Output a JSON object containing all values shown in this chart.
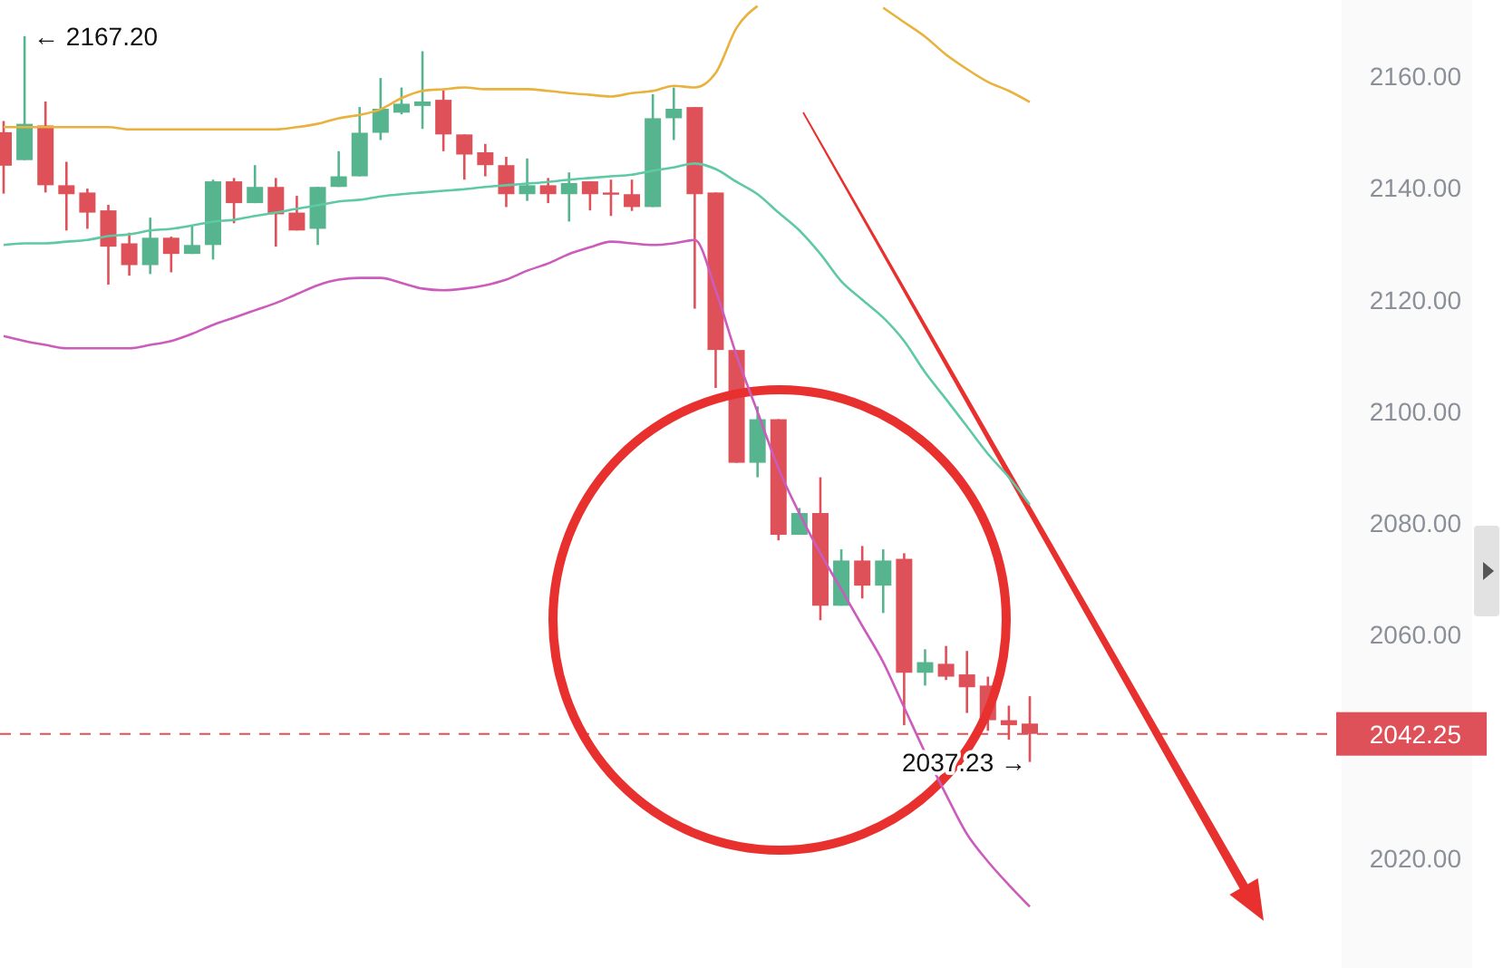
{
  "chart_data": {
    "type": "candlestick",
    "categories": [
      null,
      null,
      null,
      null,
      null,
      null,
      null,
      null,
      null,
      null,
      null,
      null,
      null,
      null,
      null,
      null,
      null,
      null,
      null,
      null,
      null,
      null,
      null,
      null,
      null,
      null,
      null,
      null,
      null,
      null,
      null,
      null,
      null,
      null,
      null,
      null,
      null,
      null,
      null,
      null,
      null,
      null,
      null,
      null,
      null,
      null,
      null,
      null,
      null,
      null
    ],
    "ohlc": [
      [
        2150,
        2152,
        2139,
        2144
      ],
      [
        2145,
        2167.2,
        2145,
        2151.5
      ],
      [
        2151.2,
        2155.5,
        2139.2,
        2140.5
      ],
      [
        2140.5,
        2144.7,
        2132.4,
        2138.9
      ],
      [
        2139.2,
        2139.9,
        2132.7,
        2135.6
      ],
      [
        2136,
        2137,
        2122.7,
        2129.5
      ],
      [
        2130.1,
        2132,
        2124.3,
        2126.2
      ],
      [
        2126.2,
        2134.7,
        2124.6,
        2131.1
      ],
      [
        2131.1,
        2131.3,
        2124.9,
        2128.2
      ],
      [
        2128.2,
        2133.4,
        2128.2,
        2129.8
      ],
      [
        2129.8,
        2141.5,
        2127.2,
        2141.2
      ],
      [
        2141.2,
        2141.8,
        2133.7,
        2137.3
      ],
      [
        2137.3,
        2144.1,
        2137.3,
        2140.2
      ],
      [
        2140.2,
        2141.8,
        2129.5,
        2135.3
      ],
      [
        2135.6,
        2138.6,
        2132.4,
        2132.4
      ],
      [
        2132.7,
        2140.2,
        2129.8,
        2140.2
      ],
      [
        2140.2,
        2146.6,
        2140.2,
        2142.1
      ],
      [
        2142.1,
        2154.5,
        2142.1,
        2149.9
      ],
      [
        2149.9,
        2159.7,
        2148.6,
        2154.2
      ],
      [
        2153.5,
        2158,
        2153.2,
        2155.1
      ],
      [
        2154.7,
        2164.5,
        2150.6,
        2155.5
      ],
      [
        2155.8,
        2157.5,
        2146.6,
        2149.6
      ],
      [
        2149.6,
        2149.6,
        2141.5,
        2146
      ],
      [
        2146.4,
        2147.9,
        2142.1,
        2144.1
      ],
      [
        2144.1,
        2145.6,
        2136.6,
        2138.9
      ],
      [
        2138.9,
        2145.3,
        2137.7,
        2140.5
      ],
      [
        2140.5,
        2141.8,
        2137.3,
        2138.9
      ],
      [
        2138.9,
        2142.8,
        2134,
        2140.9
      ],
      [
        2141.2,
        2141.2,
        2136,
        2138.9
      ],
      [
        2139.2,
        2141.5,
        2135,
        2138.9
      ],
      [
        2138.9,
        2141.5,
        2135.9,
        2136.6
      ],
      [
        2136.6,
        2156.8,
        2136.6,
        2152.5
      ],
      [
        2152.5,
        2158,
        2148.6,
        2154.2
      ],
      [
        2154.5,
        2154.5,
        2118.4,
        2138.9
      ],
      [
        2139.2,
        2139.2,
        2104.2,
        2111
      ],
      [
        2111,
        2111,
        2090.8,
        2090.8
      ],
      [
        2090.8,
        2100.9,
        2088.2,
        2098.6
      ],
      [
        2098.6,
        2098.6,
        2076.9,
        2077.9
      ],
      [
        2077.9,
        2082.7,
        2077.9,
        2081.8
      ],
      [
        2081.8,
        2088.2,
        2062.6,
        2065.2
      ],
      [
        2065.2,
        2075.3,
        2065.2,
        2073.3
      ],
      [
        2073.3,
        2075.9,
        2066.5,
        2068.8
      ],
      [
        2068.8,
        2075.3,
        2063.9,
        2073.3
      ],
      [
        2073.6,
        2074.6,
        2043.8,
        2053.2
      ],
      [
        2053.2,
        2057.4,
        2050.9,
        2055.1
      ],
      [
        2054.8,
        2058,
        2051.9,
        2052.5
      ],
      [
        2052.9,
        2057.1,
        2046,
        2050.6
      ],
      [
        2050.9,
        2052.5,
        2042.8,
        2044.7
      ],
      [
        2044.7,
        2047.3,
        2041.2,
        2043.8
      ],
      [
        2044.1,
        2049,
        2037.23,
        2042.25
      ]
    ],
    "series": [
      {
        "type": "line",
        "color": "#e8b23c",
        "values": [
          2150.9,
          2150.9,
          2150.9,
          2150.9,
          2150.9,
          2150.9,
          2150.5,
          2150.5,
          2150.5,
          2150.5,
          2150.5,
          2150.5,
          2150.5,
          2150.5,
          2150.9,
          2151.5,
          2152.5,
          2153.1,
          2154.1,
          2156.1,
          2157.4,
          2157.7,
          2158.0,
          2157.7,
          2157.7,
          2157.7,
          2157.4,
          2157.0,
          2156.7,
          2156.4,
          2157.0,
          2157.4,
          2158.3,
          2158.0,
          2160.6,
          2168.7,
          2172.6,
          null,
          null,
          null,
          null,
          null,
          2172.3,
          2169.7,
          2167.1,
          2163.9,
          2161.3,
          2159.0,
          2157.4,
          2155.4
        ]
      },
      {
        "type": "line",
        "color": "#5ec9a4",
        "values": [
          2129.8,
          2130.1,
          2130.1,
          2130.4,
          2130.7,
          2131.4,
          2131.7,
          2132.4,
          2132.7,
          2133.3,
          2134.0,
          2134.3,
          2135.0,
          2135.6,
          2136.3,
          2136.9,
          2137.6,
          2137.9,
          2138.5,
          2138.9,
          2139.2,
          2139.5,
          2139.8,
          2140.2,
          2140.5,
          2140.8,
          2141.1,
          2141.5,
          2141.8,
          2142.1,
          2142.4,
          2143.1,
          2143.7,
          2144.4,
          2143.4,
          2141.1,
          2138.9,
          2135.6,
          2132.4,
          2128.2,
          2123.3,
          2120.0,
          2116.8,
          2112.6,
          2107.0,
          2102.2,
          2097.3,
          2092.4,
          2088.2,
          2083.3
        ]
      },
      {
        "type": "line",
        "color": "#cc5cbc",
        "values": [
          2113.5,
          2112.6,
          2111.9,
          2111.3,
          2111.3,
          2111.3,
          2111.3,
          2111.9,
          2112.6,
          2113.9,
          2115.5,
          2116.8,
          2118.1,
          2119.4,
          2121.0,
          2122.6,
          2123.6,
          2123.9,
          2123.9,
          2123.0,
          2122.0,
          2121.7,
          2122.0,
          2122.6,
          2123.6,
          2125.2,
          2126.5,
          2128.2,
          2129.4,
          2130.4,
          2130.1,
          2129.8,
          2130.1,
          2130.7,
          2121.7,
          2110.0,
          2099.9,
          2089.8,
          2081.7,
          2074.6,
          2068.1,
          2061.6,
          2055.1,
          2047.0,
          2038.9,
          2031.4,
          2024.3,
          2019.4,
          2015.2,
          2011.3
        ]
      }
    ],
    "ylim": [
      2000,
      2174
    ],
    "yticks": [
      {
        "value": 2020,
        "label": "2020.00"
      },
      {
        "value": 2060,
        "label": "2060.00"
      },
      {
        "value": 2080,
        "label": "2080.00"
      },
      {
        "value": 2100,
        "label": "2100.00"
      },
      {
        "value": 2120,
        "label": "2120.00"
      },
      {
        "value": 2140,
        "label": "2140.00"
      },
      {
        "value": 2160,
        "label": "2160.00"
      }
    ],
    "tick_labels": "y",
    "ref_lines": [
      {
        "axis": "y",
        "value": 2042.25,
        "label": "2042.25",
        "color": "#de5159",
        "line_style": "dashed"
      }
    ],
    "annotations": [
      "← 2167.20",
      "2037.23 →"
    ]
  }
}
